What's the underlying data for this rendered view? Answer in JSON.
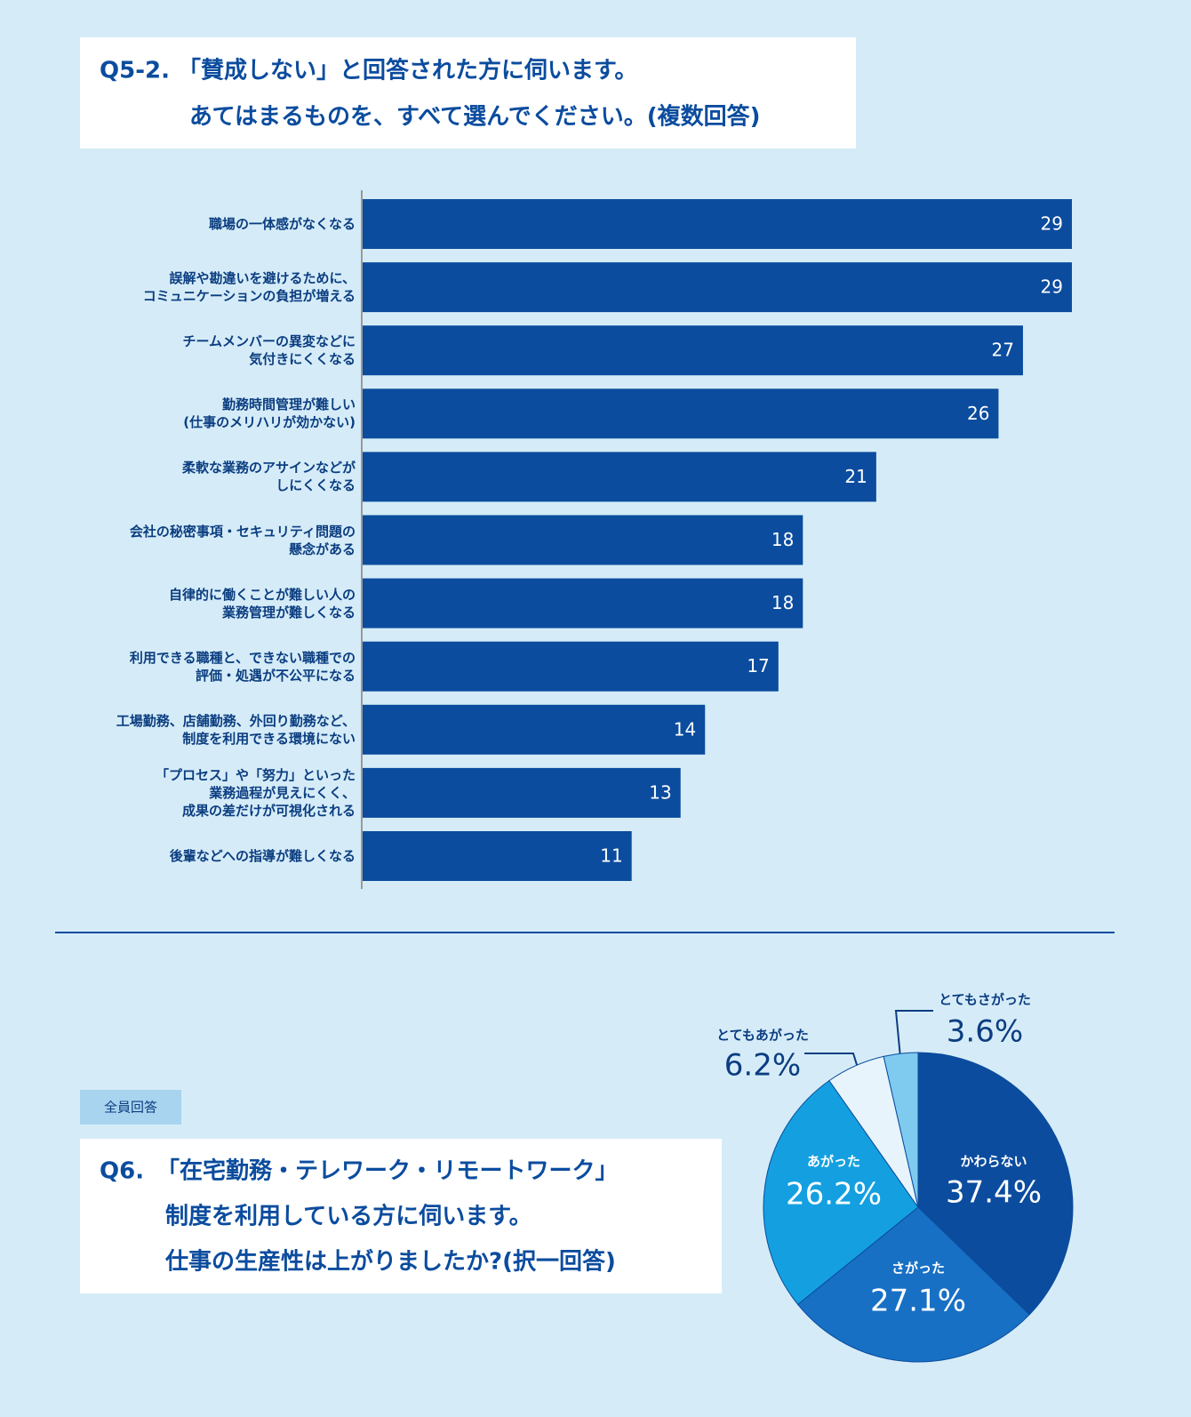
{
  "chart_data": [
    {
      "type": "bar",
      "orientation": "horizontal",
      "question_number": "Q5-2.",
      "title_lines": [
        "「賛成しない」と回答された方に伺います。",
        "あてはまるものを、すべて選んでください。(複数回答)"
      ],
      "categories": [
        "職場の一体感がなくなる",
        "誤解や勘違いを避けるために、\nコミュニケーションの負担が増える",
        "チームメンバーの異変などに\n気付きにくくなる",
        "勤務時間管理が難しい\n(仕事のメリハリが効かない)",
        "柔軟な業務のアサインなどが\nしにくくなる",
        "会社の秘密事項・セキュリティ問題の\n懸念がある",
        "自律的に働くことが難しい人の\n業務管理が難しくなる",
        "利用できる職種と、できない職種での\n評価・処遇が不公平になる",
        "工場勤務、店舗勤務、外回り勤務など、\n制度を利用できる環境にない",
        "「プロセス」や「努力」といった\n業務過程が見えにくく、\n成果の差だけが可視化される",
        "後輩などへの指導が難しくなる"
      ],
      "values": [
        29,
        29,
        27,
        26,
        21,
        18,
        18,
        17,
        14,
        13,
        11
      ],
      "color": "#0b4c9e",
      "xlim": [
        0,
        29
      ]
    },
    {
      "type": "pie",
      "tag": "全員回答",
      "question_number": "Q6.",
      "title_lines": [
        "「在宅勤務・テレワーク・リモートワーク」",
        "制度を利用している方に伺います。",
        "仕事の生産性は上がりましたか?(択一回答)"
      ],
      "categories": [
        "かわらない",
        "さがった",
        "あがった",
        "とてもあがった",
        "とてもさがった"
      ],
      "values": [
        37.4,
        27.1,
        26.2,
        6.2,
        3.6
      ],
      "value_labels": [
        "37.4%",
        "27.1%",
        "26.2%",
        "6.2%",
        "3.6%"
      ],
      "colors": [
        "#0b4c9e",
        "#1770c4",
        "#14a0e0",
        "#e8f4fb",
        "#7fcbf0"
      ]
    }
  ]
}
